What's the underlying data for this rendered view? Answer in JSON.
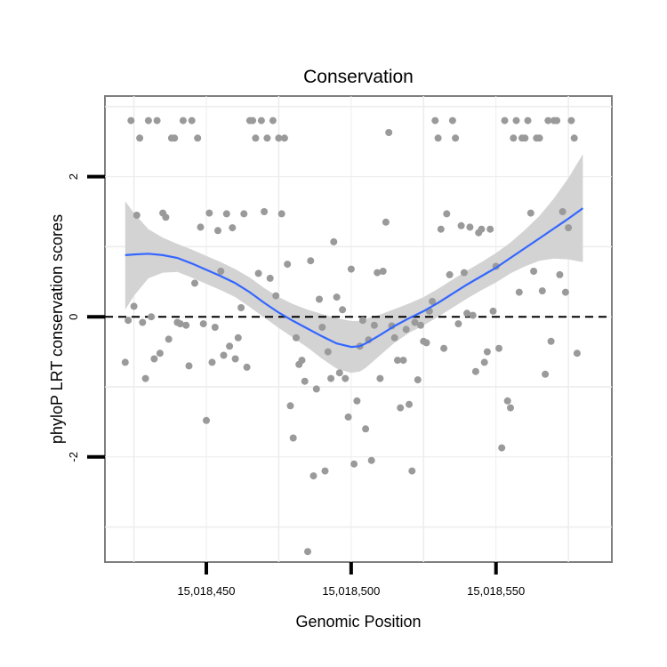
{
  "chart_data": {
    "type": "scatter",
    "title": "Conservation",
    "xlabel": "Genomic Position",
    "ylabel": "phyloP LRT conservation scores",
    "xlim": [
      15018415,
      15018590
    ],
    "ylim": [
      -3.5,
      3.15
    ],
    "x_ticks": [
      {
        "value": 15018450,
        "label": "15,018,450"
      },
      {
        "value": 15018500,
        "label": "15,018,500"
      },
      {
        "value": 15018550,
        "label": "15,018,550"
      }
    ],
    "y_ticks": [
      {
        "value": -2,
        "label": "-2"
      },
      {
        "value": 0,
        "label": "0"
      },
      {
        "value": 2,
        "label": "2"
      }
    ],
    "reference_line": {
      "y": 0,
      "style": "dashed"
    },
    "point_color": "#9a9a9a",
    "smooth_color": "#3366ff",
    "band_color": "#d3d3d3",
    "points": [
      {
        "x": 15018422,
        "y": -0.65
      },
      {
        "x": 15018423,
        "y": -0.05
      },
      {
        "x": 15018424,
        "y": 2.8
      },
      {
        "x": 15018425,
        "y": 0.15
      },
      {
        "x": 15018426,
        "y": 1.45
      },
      {
        "x": 15018427,
        "y": 2.55
      },
      {
        "x": 15018428,
        "y": -0.08
      },
      {
        "x": 15018429,
        "y": -0.88
      },
      {
        "x": 15018430,
        "y": 2.8
      },
      {
        "x": 15018431,
        "y": 0.0
      },
      {
        "x": 15018432,
        "y": -0.6
      },
      {
        "x": 15018433,
        "y": 2.8
      },
      {
        "x": 15018434,
        "y": -0.52
      },
      {
        "x": 15018435,
        "y": 1.48
      },
      {
        "x": 15018436,
        "y": 1.42
      },
      {
        "x": 15018437,
        "y": -0.32
      },
      {
        "x": 15018438,
        "y": 2.55
      },
      {
        "x": 15018439,
        "y": 2.55
      },
      {
        "x": 15018440,
        "y": -0.08
      },
      {
        "x": 15018441,
        "y": -0.1
      },
      {
        "x": 15018442,
        "y": 2.8
      },
      {
        "x": 15018443,
        "y": -0.12
      },
      {
        "x": 15018444,
        "y": -0.7
      },
      {
        "x": 15018445,
        "y": 2.8
      },
      {
        "x": 15018446,
        "y": 0.48
      },
      {
        "x": 15018447,
        "y": 2.55
      },
      {
        "x": 15018448,
        "y": 1.28
      },
      {
        "x": 15018449,
        "y": -0.1
      },
      {
        "x": 15018450,
        "y": -1.48
      },
      {
        "x": 15018451,
        "y": 1.48
      },
      {
        "x": 15018452,
        "y": -0.65
      },
      {
        "x": 15018453,
        "y": -0.15
      },
      {
        "x": 15018454,
        "y": 1.23
      },
      {
        "x": 15018455,
        "y": 0.65
      },
      {
        "x": 15018456,
        "y": -0.55
      },
      {
        "x": 15018457,
        "y": 1.47
      },
      {
        "x": 15018458,
        "y": -0.42
      },
      {
        "x": 15018459,
        "y": 1.27
      },
      {
        "x": 15018460,
        "y": -0.6
      },
      {
        "x": 15018461,
        "y": -0.3
      },
      {
        "x": 15018462,
        "y": 0.13
      },
      {
        "x": 15018463,
        "y": 1.47
      },
      {
        "x": 15018464,
        "y": -0.72
      },
      {
        "x": 15018465,
        "y": 2.8
      },
      {
        "x": 15018466,
        "y": 2.8
      },
      {
        "x": 15018467,
        "y": 2.55
      },
      {
        "x": 15018468,
        "y": 0.62
      },
      {
        "x": 15018469,
        "y": 2.8
      },
      {
        "x": 15018470,
        "y": 1.5
      },
      {
        "x": 15018471,
        "y": 2.55
      },
      {
        "x": 15018472,
        "y": 0.55
      },
      {
        "x": 15018473,
        "y": 2.8
      },
      {
        "x": 15018474,
        "y": 0.3
      },
      {
        "x": 15018475,
        "y": 2.55
      },
      {
        "x": 15018476,
        "y": 1.47
      },
      {
        "x": 15018477,
        "y": 2.55
      },
      {
        "x": 15018478,
        "y": 0.75
      },
      {
        "x": 15018479,
        "y": -1.27
      },
      {
        "x": 15018480,
        "y": -1.73
      },
      {
        "x": 15018481,
        "y": -0.3
      },
      {
        "x": 15018482,
        "y": -0.68
      },
      {
        "x": 15018483,
        "y": -0.62
      },
      {
        "x": 15018484,
        "y": -0.92
      },
      {
        "x": 15018485,
        "y": -3.35
      },
      {
        "x": 15018486,
        "y": 0.8
      },
      {
        "x": 15018487,
        "y": -2.27
      },
      {
        "x": 15018488,
        "y": -1.03
      },
      {
        "x": 15018489,
        "y": 0.25
      },
      {
        "x": 15018490,
        "y": -0.15
      },
      {
        "x": 15018491,
        "y": -2.2
      },
      {
        "x": 15018492,
        "y": -0.5
      },
      {
        "x": 15018493,
        "y": -0.88
      },
      {
        "x": 15018494,
        "y": 1.07
      },
      {
        "x": 15018495,
        "y": 0.28
      },
      {
        "x": 15018496,
        "y": -0.8
      },
      {
        "x": 15018497,
        "y": 0.1
      },
      {
        "x": 15018498,
        "y": -0.88
      },
      {
        "x": 15018499,
        "y": -1.43
      },
      {
        "x": 15018500,
        "y": 0.68
      },
      {
        "x": 15018501,
        "y": -2.1
      },
      {
        "x": 15018502,
        "y": -1.2
      },
      {
        "x": 15018503,
        "y": -0.42
      },
      {
        "x": 15018504,
        "y": -0.05
      },
      {
        "x": 15018505,
        "y": -1.6
      },
      {
        "x": 15018506,
        "y": -0.33
      },
      {
        "x": 15018507,
        "y": -2.05
      },
      {
        "x": 15018508,
        "y": -0.12
      },
      {
        "x": 15018509,
        "y": 0.63
      },
      {
        "x": 15018510,
        "y": -0.88
      },
      {
        "x": 15018511,
        "y": 0.65
      },
      {
        "x": 15018512,
        "y": 1.35
      },
      {
        "x": 15018513,
        "y": 2.63
      },
      {
        "x": 15018514,
        "y": -0.13
      },
      {
        "x": 15018515,
        "y": -0.3
      },
      {
        "x": 15018516,
        "y": -0.62
      },
      {
        "x": 15018517,
        "y": -1.3
      },
      {
        "x": 15018518,
        "y": -0.62
      },
      {
        "x": 15018519,
        "y": -0.18
      },
      {
        "x": 15018520,
        "y": -1.25
      },
      {
        "x": 15018521,
        "y": -2.2
      },
      {
        "x": 15018522,
        "y": -0.08
      },
      {
        "x": 15018523,
        "y": -0.9
      },
      {
        "x": 15018524,
        "y": -0.12
      },
      {
        "x": 15018525,
        "y": -0.35
      },
      {
        "x": 15018526,
        "y": -0.37
      },
      {
        "x": 15018527,
        "y": 0.08
      },
      {
        "x": 15018528,
        "y": 0.22
      },
      {
        "x": 15018529,
        "y": 2.8
      },
      {
        "x": 15018530,
        "y": 2.55
      },
      {
        "x": 15018531,
        "y": 1.25
      },
      {
        "x": 15018532,
        "y": -0.45
      },
      {
        "x": 15018533,
        "y": 1.47
      },
      {
        "x": 15018534,
        "y": 0.6
      },
      {
        "x": 15018535,
        "y": 2.8
      },
      {
        "x": 15018536,
        "y": 2.55
      },
      {
        "x": 15018537,
        "y": -0.1
      },
      {
        "x": 15018538,
        "y": 1.3
      },
      {
        "x": 15018539,
        "y": 0.63
      },
      {
        "x": 15018540,
        "y": 0.05
      },
      {
        "x": 15018541,
        "y": 1.28
      },
      {
        "x": 15018542,
        "y": 0.02
      },
      {
        "x": 15018543,
        "y": -0.78
      },
      {
        "x": 15018544,
        "y": 1.2
      },
      {
        "x": 15018545,
        "y": 1.25
      },
      {
        "x": 15018546,
        "y": -0.65
      },
      {
        "x": 15018547,
        "y": -0.5
      },
      {
        "x": 15018548,
        "y": 1.25
      },
      {
        "x": 15018549,
        "y": 0.08
      },
      {
        "x": 15018550,
        "y": 0.72
      },
      {
        "x": 15018551,
        "y": -0.45
      },
      {
        "x": 15018552,
        "y": -1.87
      },
      {
        "x": 15018553,
        "y": 2.8
      },
      {
        "x": 15018554,
        "y": -1.2
      },
      {
        "x": 15018555,
        "y": -1.3
      },
      {
        "x": 15018556,
        "y": 2.55
      },
      {
        "x": 15018557,
        "y": 2.8
      },
      {
        "x": 15018558,
        "y": 0.35
      },
      {
        "x": 15018559,
        "y": 2.55
      },
      {
        "x": 15018560,
        "y": 2.55
      },
      {
        "x": 15018561,
        "y": 2.8
      },
      {
        "x": 15018562,
        "y": 1.48
      },
      {
        "x": 15018563,
        "y": 0.65
      },
      {
        "x": 15018564,
        "y": 2.55
      },
      {
        "x": 15018565,
        "y": 2.55
      },
      {
        "x": 15018566,
        "y": 0.37
      },
      {
        "x": 15018567,
        "y": -0.82
      },
      {
        "x": 15018568,
        "y": 2.8
      },
      {
        "x": 15018569,
        "y": -0.35
      },
      {
        "x": 15018570,
        "y": 2.8
      },
      {
        "x": 15018571,
        "y": 2.8
      },
      {
        "x": 15018572,
        "y": 0.6
      },
      {
        "x": 15018573,
        "y": 1.5
      },
      {
        "x": 15018574,
        "y": 0.35
      },
      {
        "x": 15018575,
        "y": 1.27
      },
      {
        "x": 15018576,
        "y": 2.8
      },
      {
        "x": 15018577,
        "y": 2.55
      },
      {
        "x": 15018578,
        "y": -0.52
      }
    ],
    "smooth": [
      {
        "x": 15018422,
        "y": 0.88,
        "lo": 0.1,
        "hi": 1.65
      },
      {
        "x": 15018425,
        "y": 0.89,
        "lo": 0.3,
        "hi": 1.48
      },
      {
        "x": 15018430,
        "y": 0.9,
        "lo": 0.55,
        "hi": 1.25
      },
      {
        "x": 15018435,
        "y": 0.88,
        "lo": 0.63,
        "hi": 1.13
      },
      {
        "x": 15018440,
        "y": 0.84,
        "lo": 0.64,
        "hi": 1.04
      },
      {
        "x": 15018445,
        "y": 0.76,
        "lo": 0.56,
        "hi": 0.96
      },
      {
        "x": 15018450,
        "y": 0.67,
        "lo": 0.47,
        "hi": 0.87
      },
      {
        "x": 15018455,
        "y": 0.58,
        "lo": 0.38,
        "hi": 0.78
      },
      {
        "x": 15018460,
        "y": 0.48,
        "lo": 0.28,
        "hi": 0.68
      },
      {
        "x": 15018465,
        "y": 0.35,
        "lo": 0.14,
        "hi": 0.56
      },
      {
        "x": 15018470,
        "y": 0.2,
        "lo": -0.01,
        "hi": 0.41
      },
      {
        "x": 15018475,
        "y": 0.06,
        "lo": -0.16,
        "hi": 0.28
      },
      {
        "x": 15018480,
        "y": -0.06,
        "lo": -0.3,
        "hi": 0.18
      },
      {
        "x": 15018485,
        "y": -0.17,
        "lo": -0.44,
        "hi": 0.1
      },
      {
        "x": 15018490,
        "y": -0.28,
        "lo": -0.6,
        "hi": 0.04
      },
      {
        "x": 15018495,
        "y": -0.38,
        "lo": -0.74,
        "hi": -0.02
      },
      {
        "x": 15018500,
        "y": -0.43,
        "lo": -0.8,
        "hi": -0.06
      },
      {
        "x": 15018503,
        "y": -0.42,
        "lo": -0.78,
        "hi": -0.06
      },
      {
        "x": 15018505,
        "y": -0.38,
        "lo": -0.73,
        "hi": -0.03
      },
      {
        "x": 15018510,
        "y": -0.26,
        "lo": -0.55,
        "hi": 0.03
      },
      {
        "x": 15018515,
        "y": -0.13,
        "lo": -0.37,
        "hi": 0.11
      },
      {
        "x": 15018520,
        "y": -0.02,
        "lo": -0.23,
        "hi": 0.19
      },
      {
        "x": 15018525,
        "y": 0.08,
        "lo": -0.12,
        "hi": 0.28
      },
      {
        "x": 15018530,
        "y": 0.2,
        "lo": 0.0,
        "hi": 0.4
      },
      {
        "x": 15018535,
        "y": 0.33,
        "lo": 0.13,
        "hi": 0.53
      },
      {
        "x": 15018540,
        "y": 0.46,
        "lo": 0.26,
        "hi": 0.66
      },
      {
        "x": 15018545,
        "y": 0.58,
        "lo": 0.38,
        "hi": 0.78
      },
      {
        "x": 15018550,
        "y": 0.7,
        "lo": 0.49,
        "hi": 0.91
      },
      {
        "x": 15018555,
        "y": 0.84,
        "lo": 0.62,
        "hi": 1.06
      },
      {
        "x": 15018560,
        "y": 0.98,
        "lo": 0.72,
        "hi": 1.24
      },
      {
        "x": 15018565,
        "y": 1.12,
        "lo": 0.8,
        "hi": 1.44
      },
      {
        "x": 15018570,
        "y": 1.26,
        "lo": 0.83,
        "hi": 1.69
      },
      {
        "x": 15018575,
        "y": 1.4,
        "lo": 0.82,
        "hi": 1.98
      },
      {
        "x": 15018580,
        "y": 1.55,
        "lo": 0.78,
        "hi": 2.32
      }
    ]
  }
}
